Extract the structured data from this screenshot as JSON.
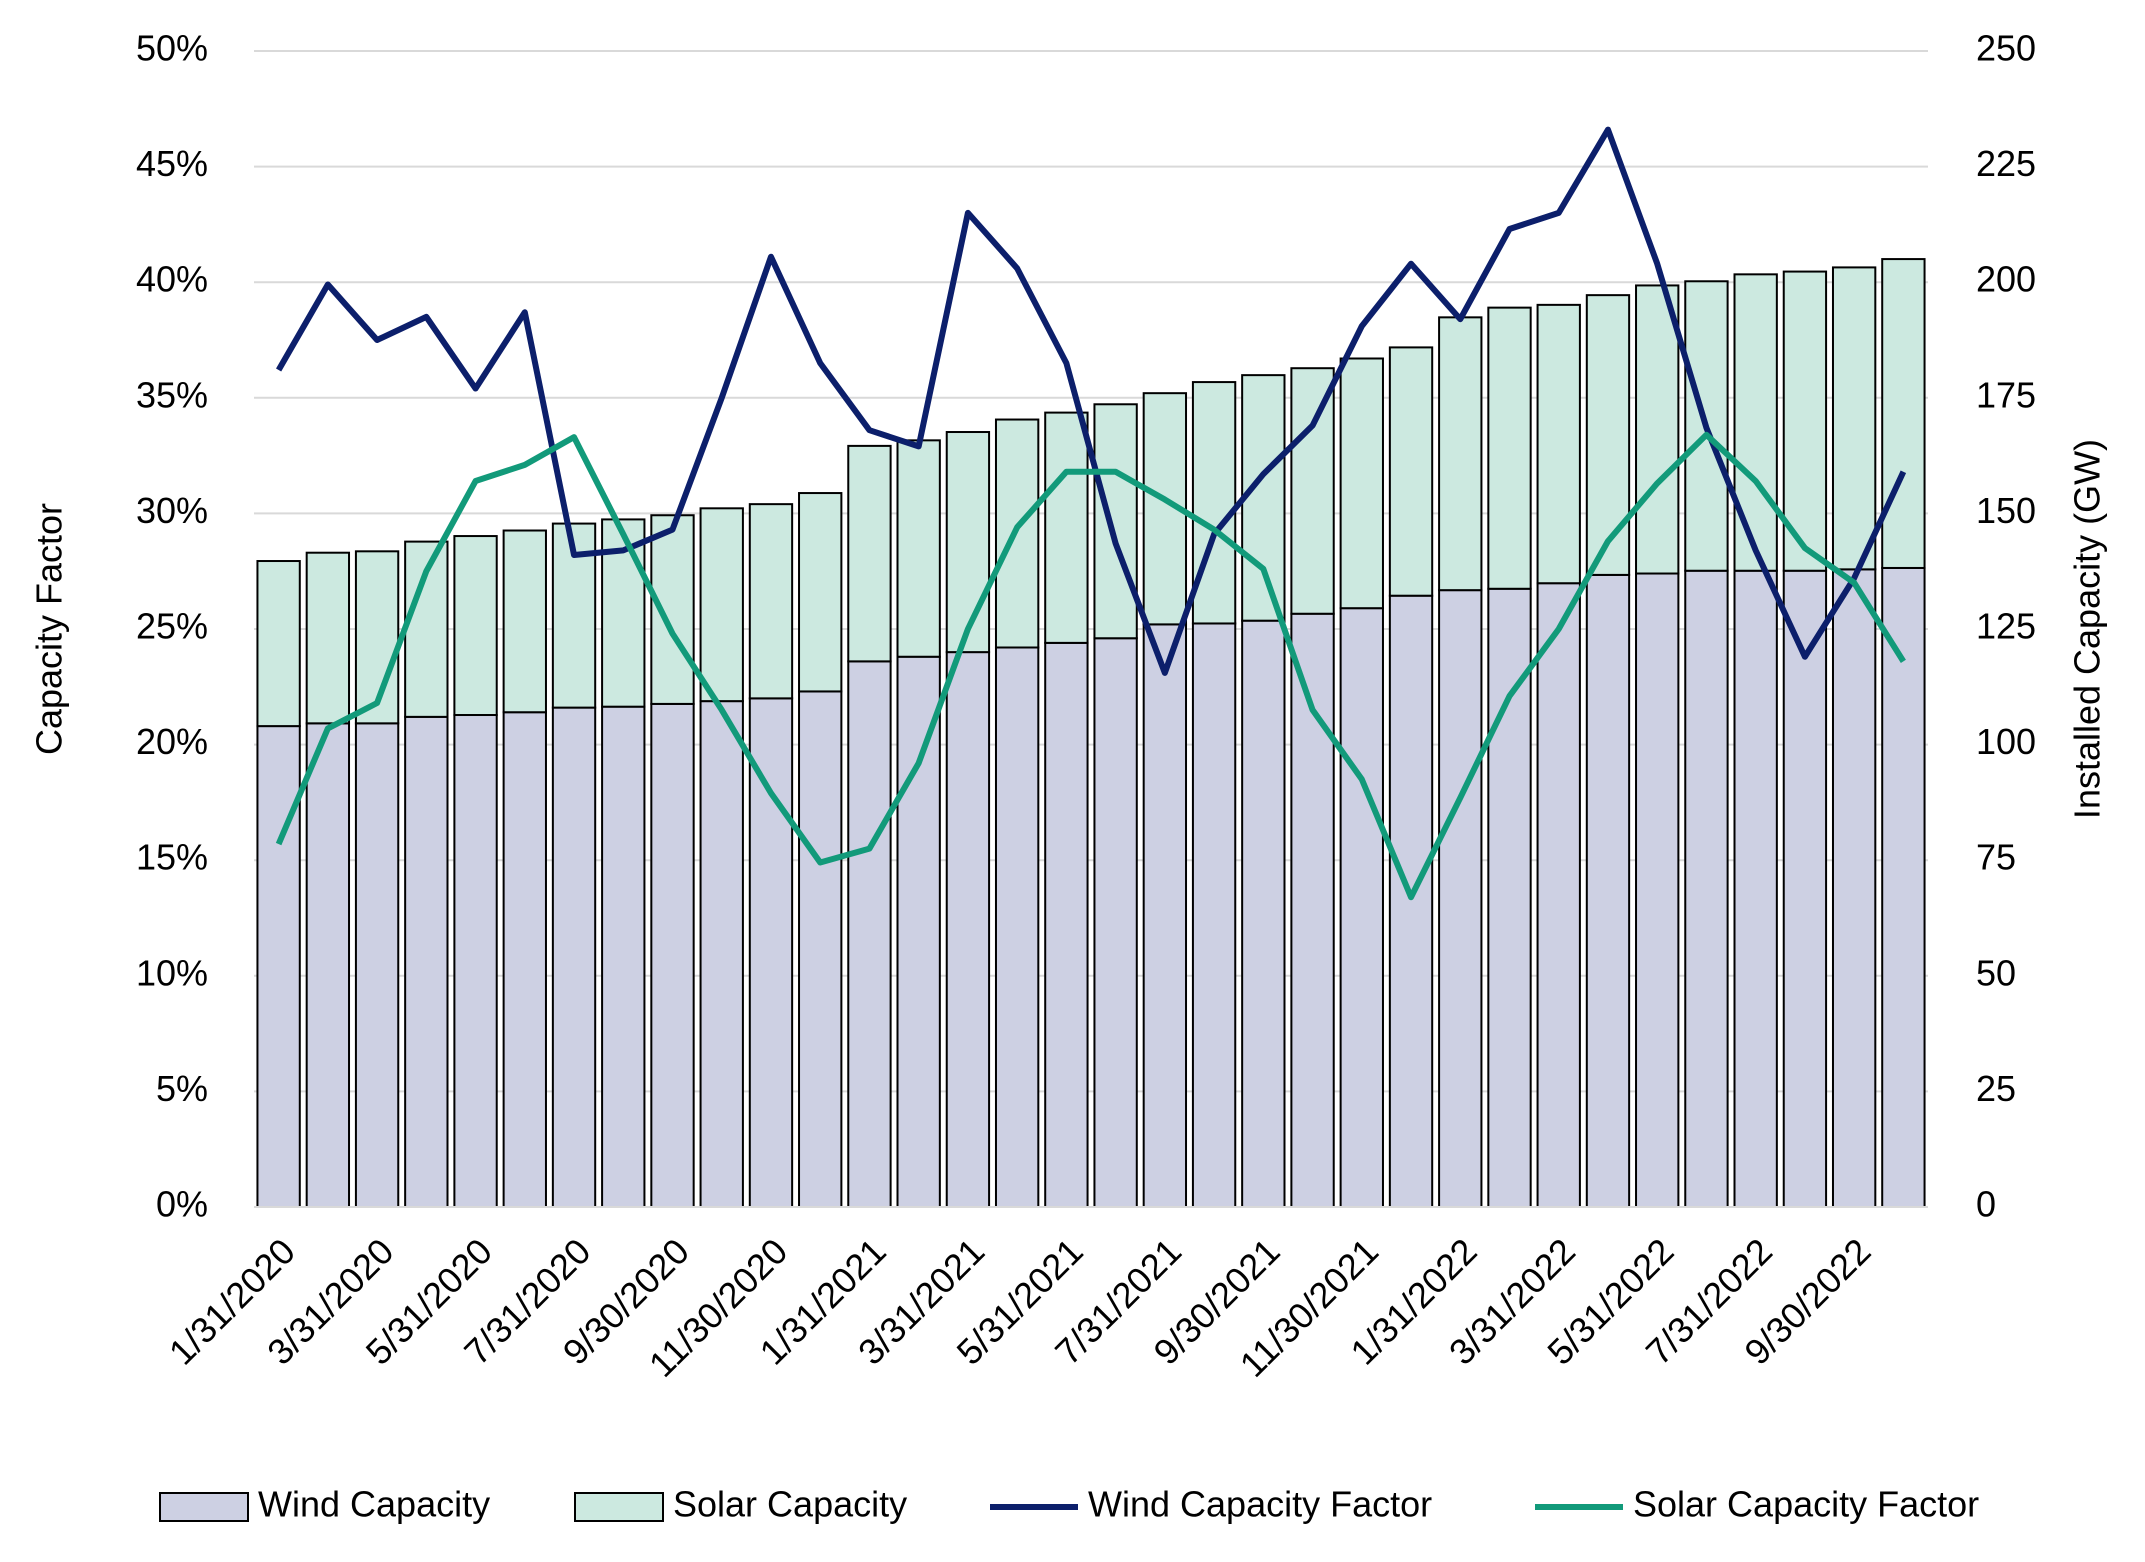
{
  "chart_data": {
    "type": "bar",
    "stacked": true,
    "y_label": "Capacity Factor",
    "y2_label": "Installed Capacity (GW)",
    "categories": [
      "1/31/2020",
      null,
      "3/31/2020",
      null,
      "5/31/2020",
      null,
      "7/31/2020",
      null,
      "9/30/2020",
      null,
      "11/30/2020",
      null,
      "1/31/2021",
      null,
      "3/31/2021",
      null,
      "5/31/2021",
      null,
      "7/31/2021",
      null,
      "9/30/2021",
      null,
      "11/30/2021",
      null,
      "1/31/2022",
      null,
      "3/31/2022",
      null,
      "5/31/2022",
      null,
      "7/31/2022",
      null,
      "9/30/2022",
      null
    ],
    "ylim": [
      0,
      50
    ],
    "yticks": [
      {
        "value": 0,
        "label": "0%"
      },
      {
        "value": 5,
        "label": "5%"
      },
      {
        "value": 10,
        "label": "10%"
      },
      {
        "value": 15,
        "label": "15%"
      },
      {
        "value": 20,
        "label": "20%"
      },
      {
        "value": 25,
        "label": "25%"
      },
      {
        "value": 30,
        "label": "30%"
      },
      {
        "value": 35,
        "label": "35%"
      },
      {
        "value": 40,
        "label": "40%"
      },
      {
        "value": 45,
        "label": "45%"
      },
      {
        "value": 50,
        "label": "50%"
      }
    ],
    "y2lim": [
      0,
      250
    ],
    "y2ticks": [
      0,
      25,
      50,
      75,
      100,
      125,
      150,
      175,
      200,
      225,
      250
    ],
    "grid": true,
    "legend": "bottom",
    "series": [
      {
        "name": "Wind Capacity",
        "type": "bar",
        "axis": "y2",
        "color": "#cdd0e3",
        "values": [
          104,
          104.6,
          104.6,
          106,
          106.4,
          107,
          108,
          108.2,
          108.8,
          109.4,
          110,
          111.5,
          118,
          119,
          120,
          121,
          122,
          123,
          126,
          126.2,
          126.8,
          128.3,
          129.5,
          132.2,
          133.4,
          133.7,
          134.9,
          136.7,
          137,
          137.6,
          137.6,
          137.6,
          137.9,
          138.2
        ]
      },
      {
        "name": "Solar Capacity",
        "type": "bar",
        "axis": "y2",
        "color": "#cce9e0",
        "values": [
          35.7,
          36.9,
          37.2,
          37.9,
          38.7,
          39.3,
          39.8,
          40.5,
          40.8,
          41.7,
          42,
          42.9,
          46.6,
          46.8,
          47.6,
          49.3,
          49.8,
          50.6,
          50,
          52.2,
          53.1,
          53.1,
          54,
          53.7,
          59,
          60.8,
          60.2,
          60.5,
          62.3,
          62.6,
          64.1,
          64.7,
          65.3,
          66.8
        ]
      },
      {
        "name": "Wind Capacity Factor",
        "type": "line",
        "color": "#0c1f6b",
        "values": [
          36.2,
          39.9,
          37.5,
          38.5,
          35.4,
          38.7,
          28.2,
          28.4,
          29.3,
          35,
          41.1,
          36.5,
          33.6,
          32.9,
          43,
          40.6,
          36.5,
          28.7,
          23.1,
          29.1,
          31.7,
          33.8,
          38.1,
          40.8,
          38.4,
          42.3,
          43,
          46.6,
          40.8,
          33.7,
          28.4,
          23.8,
          27.2,
          31.8
        ]
      },
      {
        "name": "Solar Capacity Factor",
        "type": "line",
        "color": "#129a7a",
        "values": [
          15.7,
          20.7,
          21.8,
          27.5,
          31.4,
          32.1,
          33.3,
          29.1,
          24.8,
          21.5,
          17.9,
          14.9,
          15.5,
          19.2,
          25,
          29.4,
          31.8,
          31.8,
          30.6,
          29.3,
          27.6,
          21.5,
          18.5,
          13.4,
          17.7,
          22.1,
          25,
          28.8,
          31.3,
          33.4,
          31.4,
          28.5,
          27,
          23.6
        ]
      }
    ]
  }
}
